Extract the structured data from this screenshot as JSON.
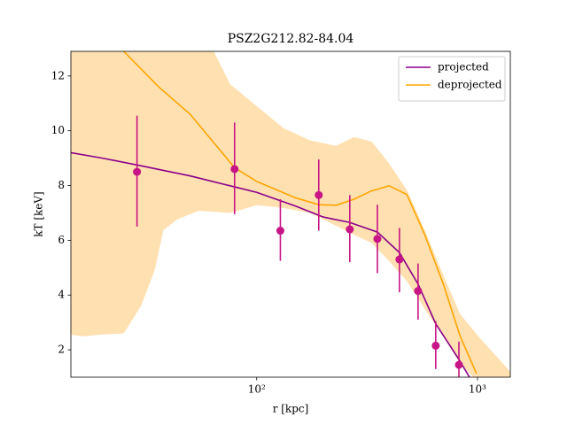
{
  "chart_data": {
    "type": "line",
    "title": "PSZ2G212.82-84.04",
    "x_label": "r [kpc]",
    "y_label": "kT [keV]",
    "xscale": "log",
    "xlim": [
      14.4,
      1408
    ],
    "ylim": [
      1,
      12.9
    ],
    "xticks": [
      {
        "value": 100,
        "label": "10²"
      },
      {
        "value": 1000,
        "label": "10³"
      }
    ],
    "yticks": [
      2,
      4,
      6,
      8,
      10,
      12
    ],
    "legend_position": "upper right",
    "band": {
      "color": "#ffe0b0",
      "x": [
        14.4,
        16.5,
        19.3,
        25,
        30,
        34.5,
        37.8,
        43.6,
        54.6,
        75.8,
        100,
        132,
        174,
        229,
        276,
        332,
        398,
        479,
        577,
        698,
        835,
        1010,
        1408
      ],
      "upper": [
        14,
        14,
        14,
        14,
        14,
        14,
        14,
        14,
        14,
        11.7,
        10.9,
        10.1,
        9.65,
        9.45,
        9.77,
        9.6,
        8.8,
        7.83,
        6.37,
        4.75,
        3.3,
        2.49,
        1.2
      ],
      "lower": [
        2.55,
        2.49,
        2.55,
        2.6,
        3.62,
        4.9,
        6.37,
        6.76,
        7.08,
        7.0,
        7.28,
        7.18,
        7.0,
        6.53,
        6.2,
        5.9,
        5.24,
        4.5,
        3.5,
        2.49,
        1.5,
        0.8,
        0.5
      ]
    },
    "series": [
      {
        "name": "projected",
        "color": "#8b008b",
        "x": [
          14.4,
          20,
          28.7,
          50,
          79.4,
          100,
          150,
          200,
          264,
          352,
          443,
          538,
          647,
          824,
          920
        ],
        "values": [
          9.2,
          9.0,
          8.75,
          8.35,
          7.95,
          7.75,
          7.25,
          6.85,
          6.65,
          6.3,
          5.55,
          4.4,
          2.95,
          1.65,
          1.0
        ]
      },
      {
        "name": "deprojected",
        "color": "#ffa500",
        "x": [
          25,
          36,
          50,
          79.4,
          100,
          150,
          191,
          229,
          276,
          330,
          398,
          479,
          577,
          698,
          835,
          990
        ],
        "values": [
          12.9,
          11.6,
          10.6,
          8.65,
          8.15,
          7.55,
          7.3,
          7.28,
          7.5,
          7.8,
          7.99,
          7.67,
          6.2,
          4.43,
          2.49,
          1.13
        ]
      }
    ],
    "points": {
      "color": "#c71585",
      "x": [
        28.7,
        79.4,
        128,
        191,
        264,
        352,
        443,
        538,
        647,
        824
      ],
      "values": [
        8.5,
        8.6,
        6.35,
        7.65,
        6.4,
        6.05,
        5.3,
        4.15,
        2.15,
        1.45
      ],
      "lower": [
        6.5,
        6.95,
        5.25,
        6.35,
        5.2,
        4.8,
        4.1,
        3.1,
        1.3,
        0.9
      ],
      "upper": [
        10.55,
        10.3,
        7.5,
        8.95,
        7.65,
        7.3,
        6.45,
        5.15,
        3.05,
        2.3
      ]
    }
  }
}
